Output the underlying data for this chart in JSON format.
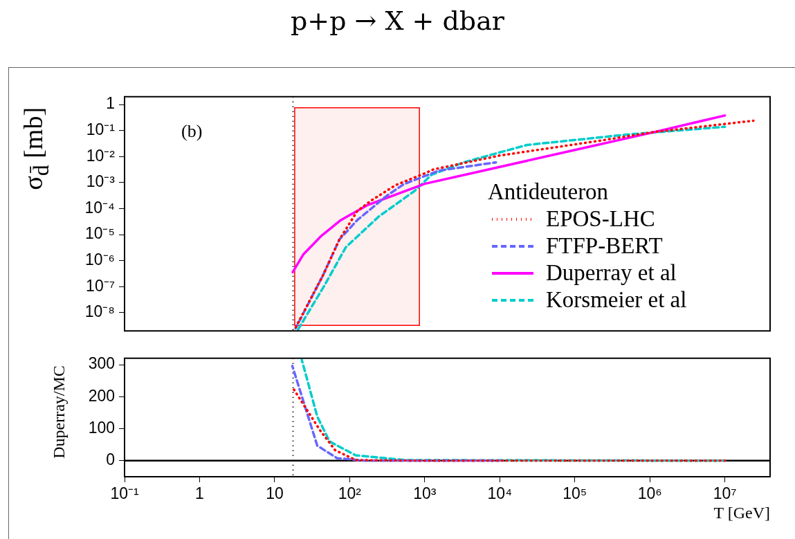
{
  "chart_data": [
    {
      "type": "line",
      "title": "p+p → X + dbar",
      "ylabel": "σ$_{d̄}$ [mb]",
      "legend_title": "Antideuteron",
      "legend": "right",
      "log": "xy",
      "grid": false,
      "tick_labels": "y",
      "annotations": [
        "(b)"
      ],
      "xlim": [
        0.1,
        40000000
      ],
      "xticks": [
        {
          "value": 0.1,
          "label": null
        },
        {
          "value": 1,
          "label": null
        },
        {
          "value": 10,
          "label": null
        },
        {
          "value": 100,
          "label": null
        },
        {
          "value": 1000,
          "label": null
        },
        {
          "value": 10000,
          "label": null
        },
        {
          "value": 100000,
          "label": null
        },
        {
          "value": 1000000,
          "label": null
        },
        {
          "value": 10000000,
          "label": null
        }
      ],
      "ylim": [
        2e-09,
        2
      ],
      "yticks": [
        1,
        {
          "value": 0.1,
          "label": "10⁻¹"
        },
        {
          "value": 0.01,
          "label": "10⁻²"
        },
        {
          "value": 0.001,
          "label": "10⁻³"
        },
        {
          "value": 0.0001,
          "label": "10⁻⁴"
        },
        {
          "value": 1e-05,
          "label": "10⁻⁵"
        },
        {
          "value": 1e-06,
          "label": "10⁻⁶"
        },
        {
          "value": 1e-07,
          "label": "10⁻⁷"
        },
        {
          "value": 1e-08,
          "label": "10⁻⁸"
        }
      ],
      "ref_lines": [
        {
          "axis": "x",
          "value": 17.6,
          "color": "#000000",
          "line_style": "dotted"
        }
      ],
      "bands": [
        {
          "axis": "x",
          "from": 18.5,
          "to": 850,
          "color": "#ff0000"
        }
      ],
      "series": [
        {
          "name": "EPOS-LHC",
          "color": "#ff0000",
          "line_style": "dotted",
          "x": [
            18.8,
            44,
            73,
            126,
            191,
            410,
            1050,
            1300,
            10000,
            230000,
            1100000,
            24000000
          ],
          "values": [
            2.5e-09,
            2.7e-07,
            6.5e-06,
            8e-05,
            0.0002,
            0.0008,
            0.0024,
            0.0032,
            0.011,
            0.042,
            0.087,
            0.24
          ]
        },
        {
          "name": "FTFP-BERT",
          "color": "#6666ff",
          "line_style": "dashed",
          "x": [
            19,
            44,
            73,
            126,
            316,
            525,
            1550,
            8900
          ],
          "values": [
            2.5e-09,
            2.7e-07,
            6.5e-06,
            3.6e-05,
            0.00032,
            0.00087,
            0.0029,
            0.006
          ]
        },
        {
          "name": "Duperray et al",
          "color": "#ff00ff",
          "line_style": "solid",
          "x": [
            17.4,
            24,
            42,
            76,
            176,
            1000,
            10000,
            100000,
            1000000,
            10000000
          ],
          "values": [
            3.6e-07,
            1.7e-06,
            9e-06,
            3.6e-05,
            0.00014,
            0.0009,
            0.004,
            0.018,
            0.08,
            0.38
          ]
        },
        {
          "name": "Korsmeier et al",
          "color": "#00cccc",
          "line_style": "dashed",
          "x": [
            20,
            46,
            89,
            245,
            740,
            1230,
            3300,
            23000,
            490000,
            10000000
          ],
          "values": [
            2e-09,
            1.1e-07,
            3.3e-06,
            5e-05,
            0.00049,
            0.002,
            0.006,
            0.028,
            0.07,
            0.14
          ]
        }
      ]
    },
    {
      "type": "line",
      "xlabel": "T [GeV]",
      "ylabel": "Duperray/MC",
      "log": "x",
      "grid": false,
      "legend": false,
      "xlim": [
        0.1,
        40000000
      ],
      "xticks": [
        {
          "value": 0.1,
          "label": "10⁻¹"
        },
        1,
        10,
        {
          "value": 100,
          "label": "10²"
        },
        {
          "value": 1000,
          "label": "10³"
        },
        {
          "value": 10000,
          "label": "10⁴"
        },
        {
          "value": 100000,
          "label": "10⁵"
        },
        {
          "value": 1000000,
          "label": "10⁶"
        },
        {
          "value": 10000000,
          "label": "10⁷"
        }
      ],
      "ylim": [
        -50,
        320
      ],
      "yticks": [
        0,
        100,
        200,
        300
      ],
      "ref_lines": [
        {
          "axis": "x",
          "value": 17.6,
          "color": "#000000",
          "line_style": "dotted"
        },
        {
          "axis": "y",
          "value": 0,
          "color": "#000000",
          "line_style": "solid"
        }
      ],
      "series": [
        {
          "color": "#ff0000",
          "line_style": "dotted",
          "x": [
            17,
            40,
            64,
            120,
            1000,
            10000000
          ],
          "values": [
            232,
            96,
            33,
            2,
            0,
            0
          ]
        },
        {
          "color": "#6666ff",
          "line_style": "dashed",
          "x": [
            17.2,
            37,
            68,
            160,
            1000,
            10000
          ],
          "values": [
            296,
            47,
            8,
            0,
            0,
            0
          ]
        },
        {
          "color": "#00cccc",
          "line_style": "dashed",
          "x": [
            23,
            37,
            54,
            120,
            550,
            10000000
          ],
          "values": [
            315,
            138,
            60,
            17,
            2,
            0
          ]
        }
      ]
    }
  ]
}
